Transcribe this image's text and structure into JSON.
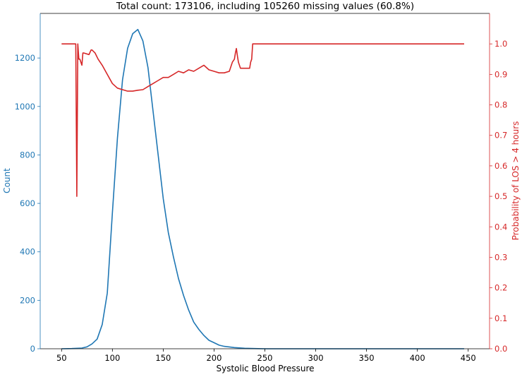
{
  "chart_data": {
    "type": "line",
    "title": "Total count: 173106, including 105260 missing values (60.8%)",
    "xlabel": "Systolic Blood Pressure",
    "ylabel_left": "Count",
    "ylabel_right": "Probability of LOS > 4 hours",
    "xlim": [
      29,
      471
    ],
    "ylim_left": [
      0,
      1384
    ],
    "ylim_right": [
      0,
      1.1
    ],
    "x_ticks": [
      50,
      100,
      150,
      200,
      250,
      300,
      350,
      400,
      450
    ],
    "y_left_ticks": [
      0,
      200,
      400,
      600,
      800,
      1000,
      1200
    ],
    "y_right_ticks": [
      "0.0",
      "0.1",
      "0.2",
      "0.3",
      "0.4",
      "0.5",
      "0.6",
      "0.7",
      "0.8",
      "0.9",
      "1.0"
    ],
    "grid": false,
    "colors": {
      "left": "#1f77b4",
      "right": "#d62728"
    },
    "series": [
      {
        "axis": "left",
        "color": "#1f77b4",
        "x": [
          50,
          60,
          70,
          75,
          80,
          85,
          90,
          95,
          100,
          105,
          110,
          115,
          120,
          125,
          130,
          135,
          140,
          145,
          150,
          155,
          160,
          165,
          170,
          175,
          180,
          185,
          190,
          195,
          200,
          205,
          210,
          220,
          230,
          240,
          250,
          446
        ],
        "y": [
          0,
          1,
          3,
          8,
          20,
          40,
          100,
          230,
          560,
          870,
          1110,
          1240,
          1300,
          1318,
          1270,
          1160,
          980,
          800,
          620,
          480,
          380,
          290,
          220,
          160,
          110,
          80,
          55,
          35,
          25,
          15,
          10,
          5,
          2,
          1,
          0,
          0
        ]
      },
      {
        "axis": "right",
        "color": "#d62728",
        "x": [
          50,
          64,
          65,
          66,
          67,
          68,
          70,
          71,
          72,
          77,
          79,
          80,
          83,
          86,
          90,
          95,
          100,
          105,
          110,
          115,
          120,
          125,
          130,
          135,
          140,
          145,
          150,
          155,
          160,
          165,
          170,
          175,
          180,
          185,
          190,
          195,
          200,
          205,
          210,
          215,
          218,
          220,
          221,
          222,
          223,
          224,
          226,
          235,
          236,
          237,
          238,
          446
        ],
        "y": [
          1.0,
          1.0,
          0.5,
          1.0,
          0.95,
          0.95,
          0.93,
          0.97,
          0.97,
          0.965,
          0.98,
          0.98,
          0.97,
          0.95,
          0.93,
          0.9,
          0.87,
          0.855,
          0.85,
          0.845,
          0.845,
          0.848,
          0.85,
          0.86,
          0.87,
          0.88,
          0.89,
          0.89,
          0.9,
          0.91,
          0.905,
          0.915,
          0.91,
          0.92,
          0.93,
          0.915,
          0.91,
          0.905,
          0.905,
          0.91,
          0.94,
          0.95,
          0.97,
          0.985,
          0.96,
          0.94,
          0.92,
          0.92,
          0.94,
          0.95,
          1.0,
          1.0
        ]
      }
    ]
  }
}
